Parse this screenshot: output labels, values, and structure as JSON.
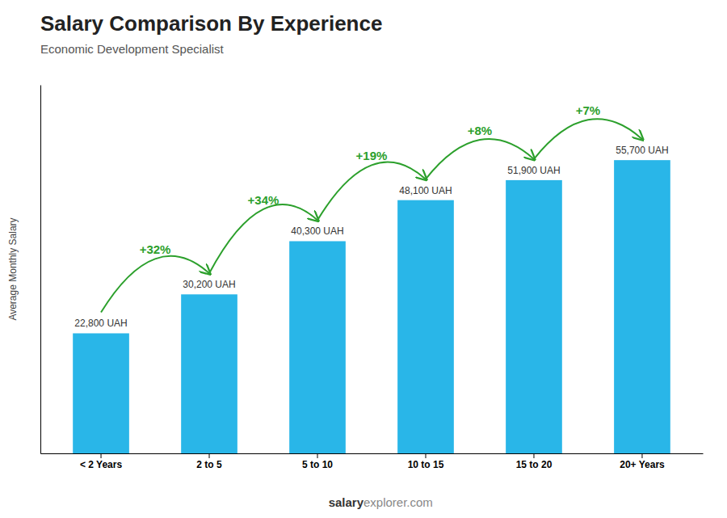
{
  "chart_data": {
    "type": "bar",
    "title": "Salary Comparison By Experience",
    "subtitle": "Economic Development Specialist",
    "y_label": "Average Monthly Salary",
    "categories": [
      "< 2 Years",
      "2 to 5",
      "5 to 10",
      "10 to 15",
      "15 to 20",
      "20+ Years"
    ],
    "values": [
      22800,
      30200,
      40300,
      48100,
      51900,
      55700
    ],
    "value_labels": [
      "22,800 UAH",
      "30,200 UAH",
      "40,300 UAH",
      "48,100 UAH",
      "51,900 UAH",
      "55,700 UAH"
    ],
    "data_labels": true,
    "annotations": [
      "+32%",
      "+34%",
      "+19%",
      "+8%",
      "+7%"
    ],
    "footer": [
      "salary",
      "explorer.com"
    ],
    "color": "#29b6e8",
    "ylim": [
      0,
      70000
    ],
    "tick_labels": "x"
  }
}
